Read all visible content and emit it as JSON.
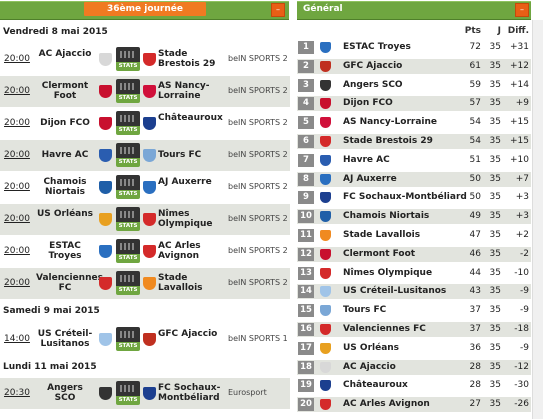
{
  "fixtures": {
    "title": "36ème journée",
    "days": [
      {
        "label": "Vendredi 8 mai 2015"
      },
      {
        "label": "Samedi 9 mai 2015"
      },
      {
        "label": "Lundi 11 mai 2015"
      }
    ],
    "stats_label": "STATS",
    "matches": [
      {
        "time": "20:00",
        "home": "AC Ajaccio",
        "away": "Stade Brestois 29",
        "tv": "beIN SPORTS 2",
        "home_color": "#d8d8d8",
        "away_color": "#d42a2a"
      },
      {
        "time": "20:00",
        "home": "Clermont Foot",
        "away": "AS Nancy-Lorraine",
        "tv": "beIN SPORTS 2",
        "home_color": "#c8102e",
        "away_color": "#d0103a"
      },
      {
        "time": "20:00",
        "home": "Dijon FCO",
        "away": "Châteauroux",
        "tv": "beIN SPORTS 2",
        "home_color": "#c8102e",
        "away_color": "#1c3f8f"
      },
      {
        "time": "20:00",
        "home": "Havre AC",
        "away": "Tours FC",
        "tv": "beIN SPORTS 2",
        "home_color": "#2a5db0",
        "away_color": "#7aa7d6"
      },
      {
        "time": "20:00",
        "home": "Chamois Niortais",
        "away": "AJ Auxerre",
        "tv": "beIN SPORTS 2",
        "home_color": "#1f5fa8",
        "away_color": "#2a6fc0"
      },
      {
        "time": "20:00",
        "home": "US Orléans",
        "away": "Nîmes Olympique",
        "tv": "beIN SPORTS 2",
        "home_color": "#e8a020",
        "away_color": "#d42a2a"
      },
      {
        "time": "20:00",
        "home": "ESTAC Troyes",
        "away": "AC Arles Avignon",
        "tv": "beIN SPORTS 2",
        "home_color": "#2a6fc0",
        "away_color": "#d42a2a"
      },
      {
        "time": "20:00",
        "home": "Valenciennes FC",
        "away": "Stade Lavallois",
        "tv": "beIN SPORTS 2",
        "home_color": "#d42a2a",
        "away_color": "#f08a20"
      },
      {
        "time": "14:00",
        "home": "US Créteil-Lusitanos",
        "away": "GFC Ajaccio",
        "tv": "beIN SPORTS 1",
        "home_color": "#a0c4e8",
        "away_color": "#c03020"
      },
      {
        "time": "20:30",
        "home": "Angers SCO",
        "away": "FC Sochaux-Montbéliard",
        "tv": "Eurosport",
        "home_color": "#333333",
        "away_color": "#1c3f8f"
      }
    ]
  },
  "standings": {
    "title": "Général",
    "headers": {
      "pts": "Pts",
      "j": "J",
      "diff": "Diff."
    },
    "rows": [
      {
        "rank": "1",
        "team": "ESTAC Troyes",
        "pts": "72",
        "j": "35",
        "diff": "+31",
        "color": "#2a6fc0"
      },
      {
        "rank": "2",
        "team": "GFC Ajaccio",
        "pts": "61",
        "j": "35",
        "diff": "+12",
        "color": "#c03020"
      },
      {
        "rank": "3",
        "team": "Angers SCO",
        "pts": "59",
        "j": "35",
        "diff": "+14",
        "color": "#333333"
      },
      {
        "rank": "4",
        "team": "Dijon FCO",
        "pts": "57",
        "j": "35",
        "diff": "+9",
        "color": "#c8102e"
      },
      {
        "rank": "5",
        "team": "AS Nancy-Lorraine",
        "pts": "54",
        "j": "35",
        "diff": "+15",
        "color": "#d0103a"
      },
      {
        "rank": "6",
        "team": "Stade Brestois 29",
        "pts": "54",
        "j": "35",
        "diff": "+15",
        "color": "#d42a2a"
      },
      {
        "rank": "7",
        "team": "Havre AC",
        "pts": "51",
        "j": "35",
        "diff": "+10",
        "color": "#2a5db0"
      },
      {
        "rank": "8",
        "team": "AJ Auxerre",
        "pts": "50",
        "j": "35",
        "diff": "+7",
        "color": "#2a6fc0"
      },
      {
        "rank": "9",
        "team": "FC Sochaux-Montbéliard",
        "pts": "50",
        "j": "35",
        "diff": "+3",
        "color": "#1c3f8f"
      },
      {
        "rank": "10",
        "team": "Chamois Niortais",
        "pts": "49",
        "j": "35",
        "diff": "+3",
        "color": "#1f5fa8"
      },
      {
        "rank": "11",
        "team": "Stade Lavallois",
        "pts": "47",
        "j": "35",
        "diff": "+2",
        "color": "#f08a20"
      },
      {
        "rank": "12",
        "team": "Clermont Foot",
        "pts": "46",
        "j": "35",
        "diff": "-2",
        "color": "#c8102e"
      },
      {
        "rank": "13",
        "team": "Nîmes Olympique",
        "pts": "44",
        "j": "35",
        "diff": "-10",
        "color": "#d42a2a"
      },
      {
        "rank": "14",
        "team": "US Créteil-Lusitanos",
        "pts": "43",
        "j": "35",
        "diff": "-9",
        "color": "#a0c4e8"
      },
      {
        "rank": "15",
        "team": "Tours FC",
        "pts": "37",
        "j": "35",
        "diff": "-9",
        "color": "#7aa7d6"
      },
      {
        "rank": "16",
        "team": "Valenciennes FC",
        "pts": "37",
        "j": "35",
        "diff": "-18",
        "color": "#d42a2a"
      },
      {
        "rank": "17",
        "team": "US Orléans",
        "pts": "36",
        "j": "35",
        "diff": "-9",
        "color": "#e8a020"
      },
      {
        "rank": "18",
        "team": "AC Ajaccio",
        "pts": "28",
        "j": "35",
        "diff": "-12",
        "color": "#d8d8d8"
      },
      {
        "rank": "19",
        "team": "Châteauroux",
        "pts": "28",
        "j": "35",
        "diff": "-30",
        "color": "#1c3f8f"
      },
      {
        "rank": "20",
        "team": "AC Arles Avignon",
        "pts": "27",
        "j": "35",
        "diff": "-26",
        "color": "#d42a2a"
      }
    ]
  }
}
